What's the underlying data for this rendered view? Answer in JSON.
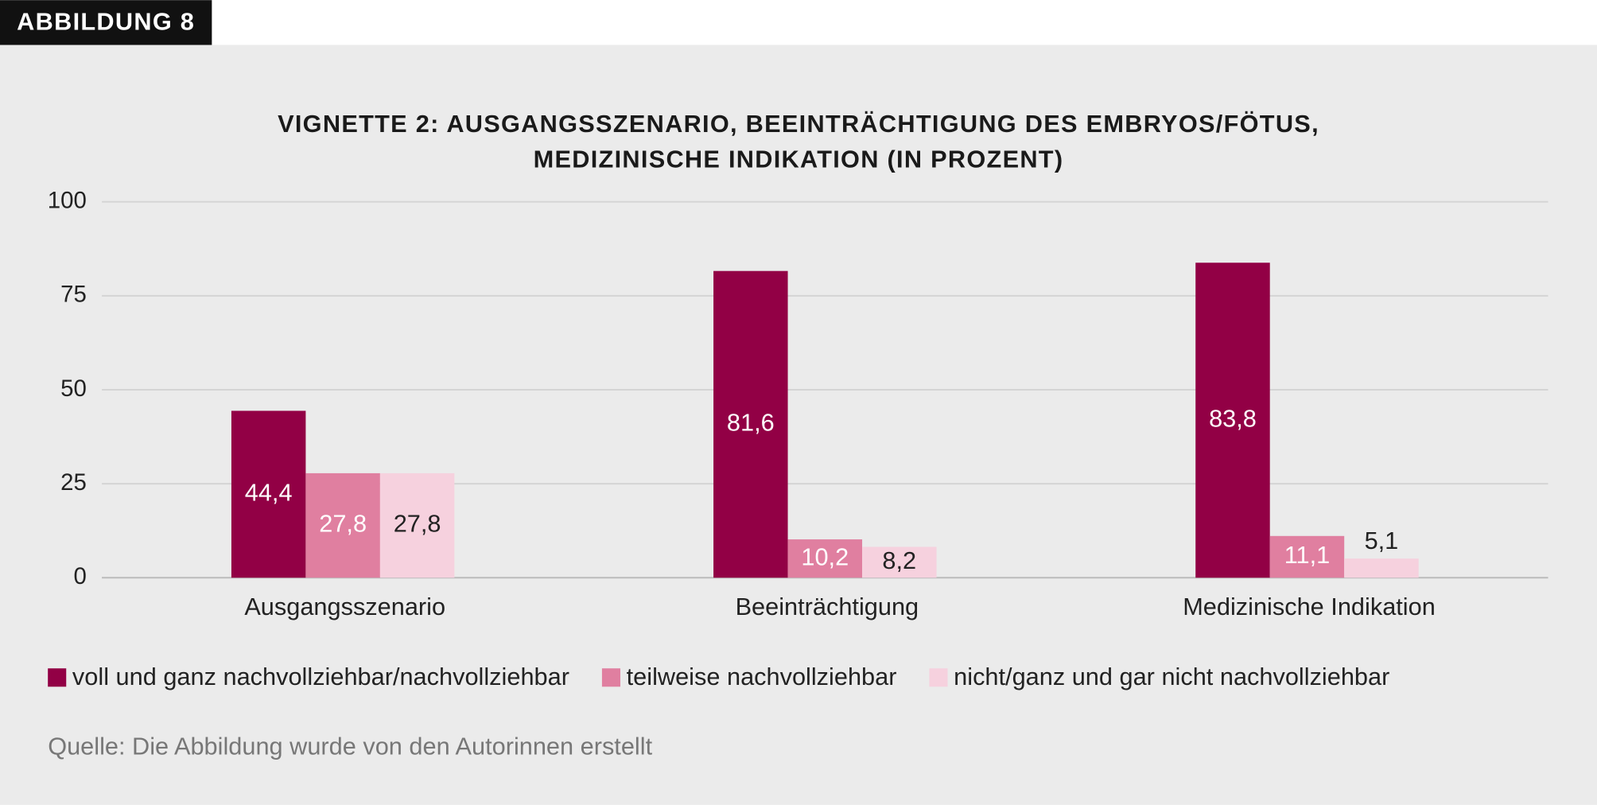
{
  "chart_data": {
    "type": "bar",
    "figure_label": "ABBILDUNG 8",
    "title": [
      "VIGNETTE 2: AUSGANGSSZENARIO, BEEINTRÄCHTIGUNG DES EMBRYOS/FÖTUS,",
      "MEDIZINISCHE INDIKATION (IN PROZENT)"
    ],
    "categories": [
      "Ausgangsszenario",
      "Beeinträchtigung",
      "Medizinische Indikation"
    ],
    "series": [
      {
        "name": "voll und ganz nachvollziehbar/nachvollziehbar",
        "color": "#920045",
        "label_color": "#ffffff",
        "values": [
          44.4,
          81.6,
          83.8
        ],
        "value_labels": [
          "44,4",
          "81,6",
          "83,8"
        ]
      },
      {
        "name": "teilweise nachvollziehbar",
        "color": "#e07fa0",
        "label_color": "#ffffff",
        "values": [
          27.8,
          10.2,
          11.1
        ],
        "value_labels": [
          "27,8",
          "10,2",
          "11,1"
        ]
      },
      {
        "name": "nicht/ganz und gar nicht nachvollziehbar",
        "color": "#f6d1de",
        "label_color": "#222222",
        "values": [
          27.8,
          8.2,
          5.1
        ],
        "value_labels": [
          "27,8",
          "8,2",
          "5,1"
        ]
      }
    ],
    "ylim": [
      0,
      100
    ],
    "yticks": [
      0,
      25,
      50,
      75,
      100
    ],
    "grid": true,
    "legend": "bottom",
    "source": "Quelle: Die Abbildung wurde von den Autorinnen erstellt"
  }
}
